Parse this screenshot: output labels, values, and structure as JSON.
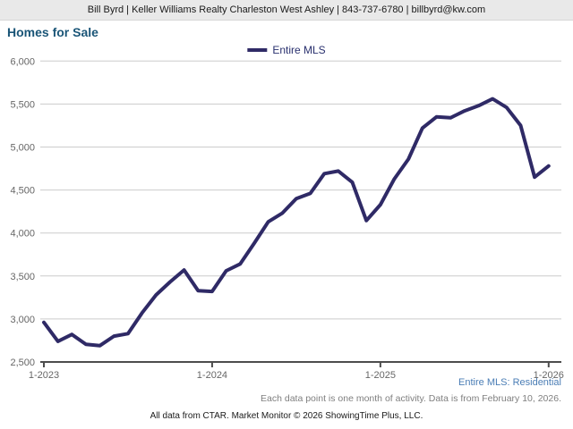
{
  "header": {
    "contact_line": "Bill Byrd | Keller Williams Realty Charleston West Ashley | 843-737-6780 | billbyrd@kw.com"
  },
  "title": "Homes for Sale",
  "legend": {
    "label": "Entire MLS"
  },
  "chart_data": {
    "type": "line",
    "title": "Homes for Sale",
    "x": [
      "1-2023",
      "2-2023",
      "3-2023",
      "4-2023",
      "5-2023",
      "6-2023",
      "7-2023",
      "8-2023",
      "9-2023",
      "10-2023",
      "11-2023",
      "12-2023",
      "1-2024",
      "2-2024",
      "3-2024",
      "4-2024",
      "5-2024",
      "6-2024",
      "7-2024",
      "8-2024",
      "9-2024",
      "10-2024",
      "11-2024",
      "12-2024",
      "1-2025",
      "2-2025",
      "3-2025",
      "4-2025",
      "5-2025",
      "6-2025",
      "7-2025",
      "8-2025",
      "9-2025",
      "10-2025",
      "11-2025",
      "12-2025",
      "1-2026"
    ],
    "series": [
      {
        "name": "Entire MLS",
        "color": "#2f2a66",
        "values": [
          2960,
          2740,
          2820,
          2705,
          2690,
          2800,
          2830,
          3070,
          3280,
          3430,
          3570,
          3330,
          3320,
          3560,
          3640,
          3880,
          4130,
          4230,
          4400,
          4460,
          4690,
          4720,
          4590,
          4145,
          4330,
          4630,
          4860,
          5220,
          5350,
          5340,
          5420,
          5480,
          5560,
          5460,
          5250,
          4650,
          4780
        ]
      }
    ],
    "x_tick_labels": [
      "1-2023",
      "1-2024",
      "1-2025",
      "1-2026"
    ],
    "x_tick_indices": [
      0,
      12,
      24,
      36
    ],
    "y_ticks": [
      2500,
      3000,
      3500,
      4000,
      4500,
      5000,
      5500,
      6000
    ],
    "ylim": [
      2500,
      6000
    ],
    "xlabel": "",
    "ylabel": "",
    "grid": true,
    "legend_position": "top-center"
  },
  "footer": {
    "series_note": "Entire MLS: Residential",
    "data_note": "Each data point is one month of activity. Data is from February 10, 2026.",
    "attribution": "All data from CTAR. Market Monitor © 2026 ShowingTime Plus, LLC."
  },
  "colors": {
    "line": "#2f2a66",
    "title": "#1a5577",
    "legend_text": "#29306e",
    "series_note": "#4a7db5",
    "axis_text": "#666666",
    "gridline": "#cccccc",
    "axis_line": "#4d4d4d",
    "header_bg": "#e9e9e9",
    "data_note": "#7f7f7f"
  }
}
